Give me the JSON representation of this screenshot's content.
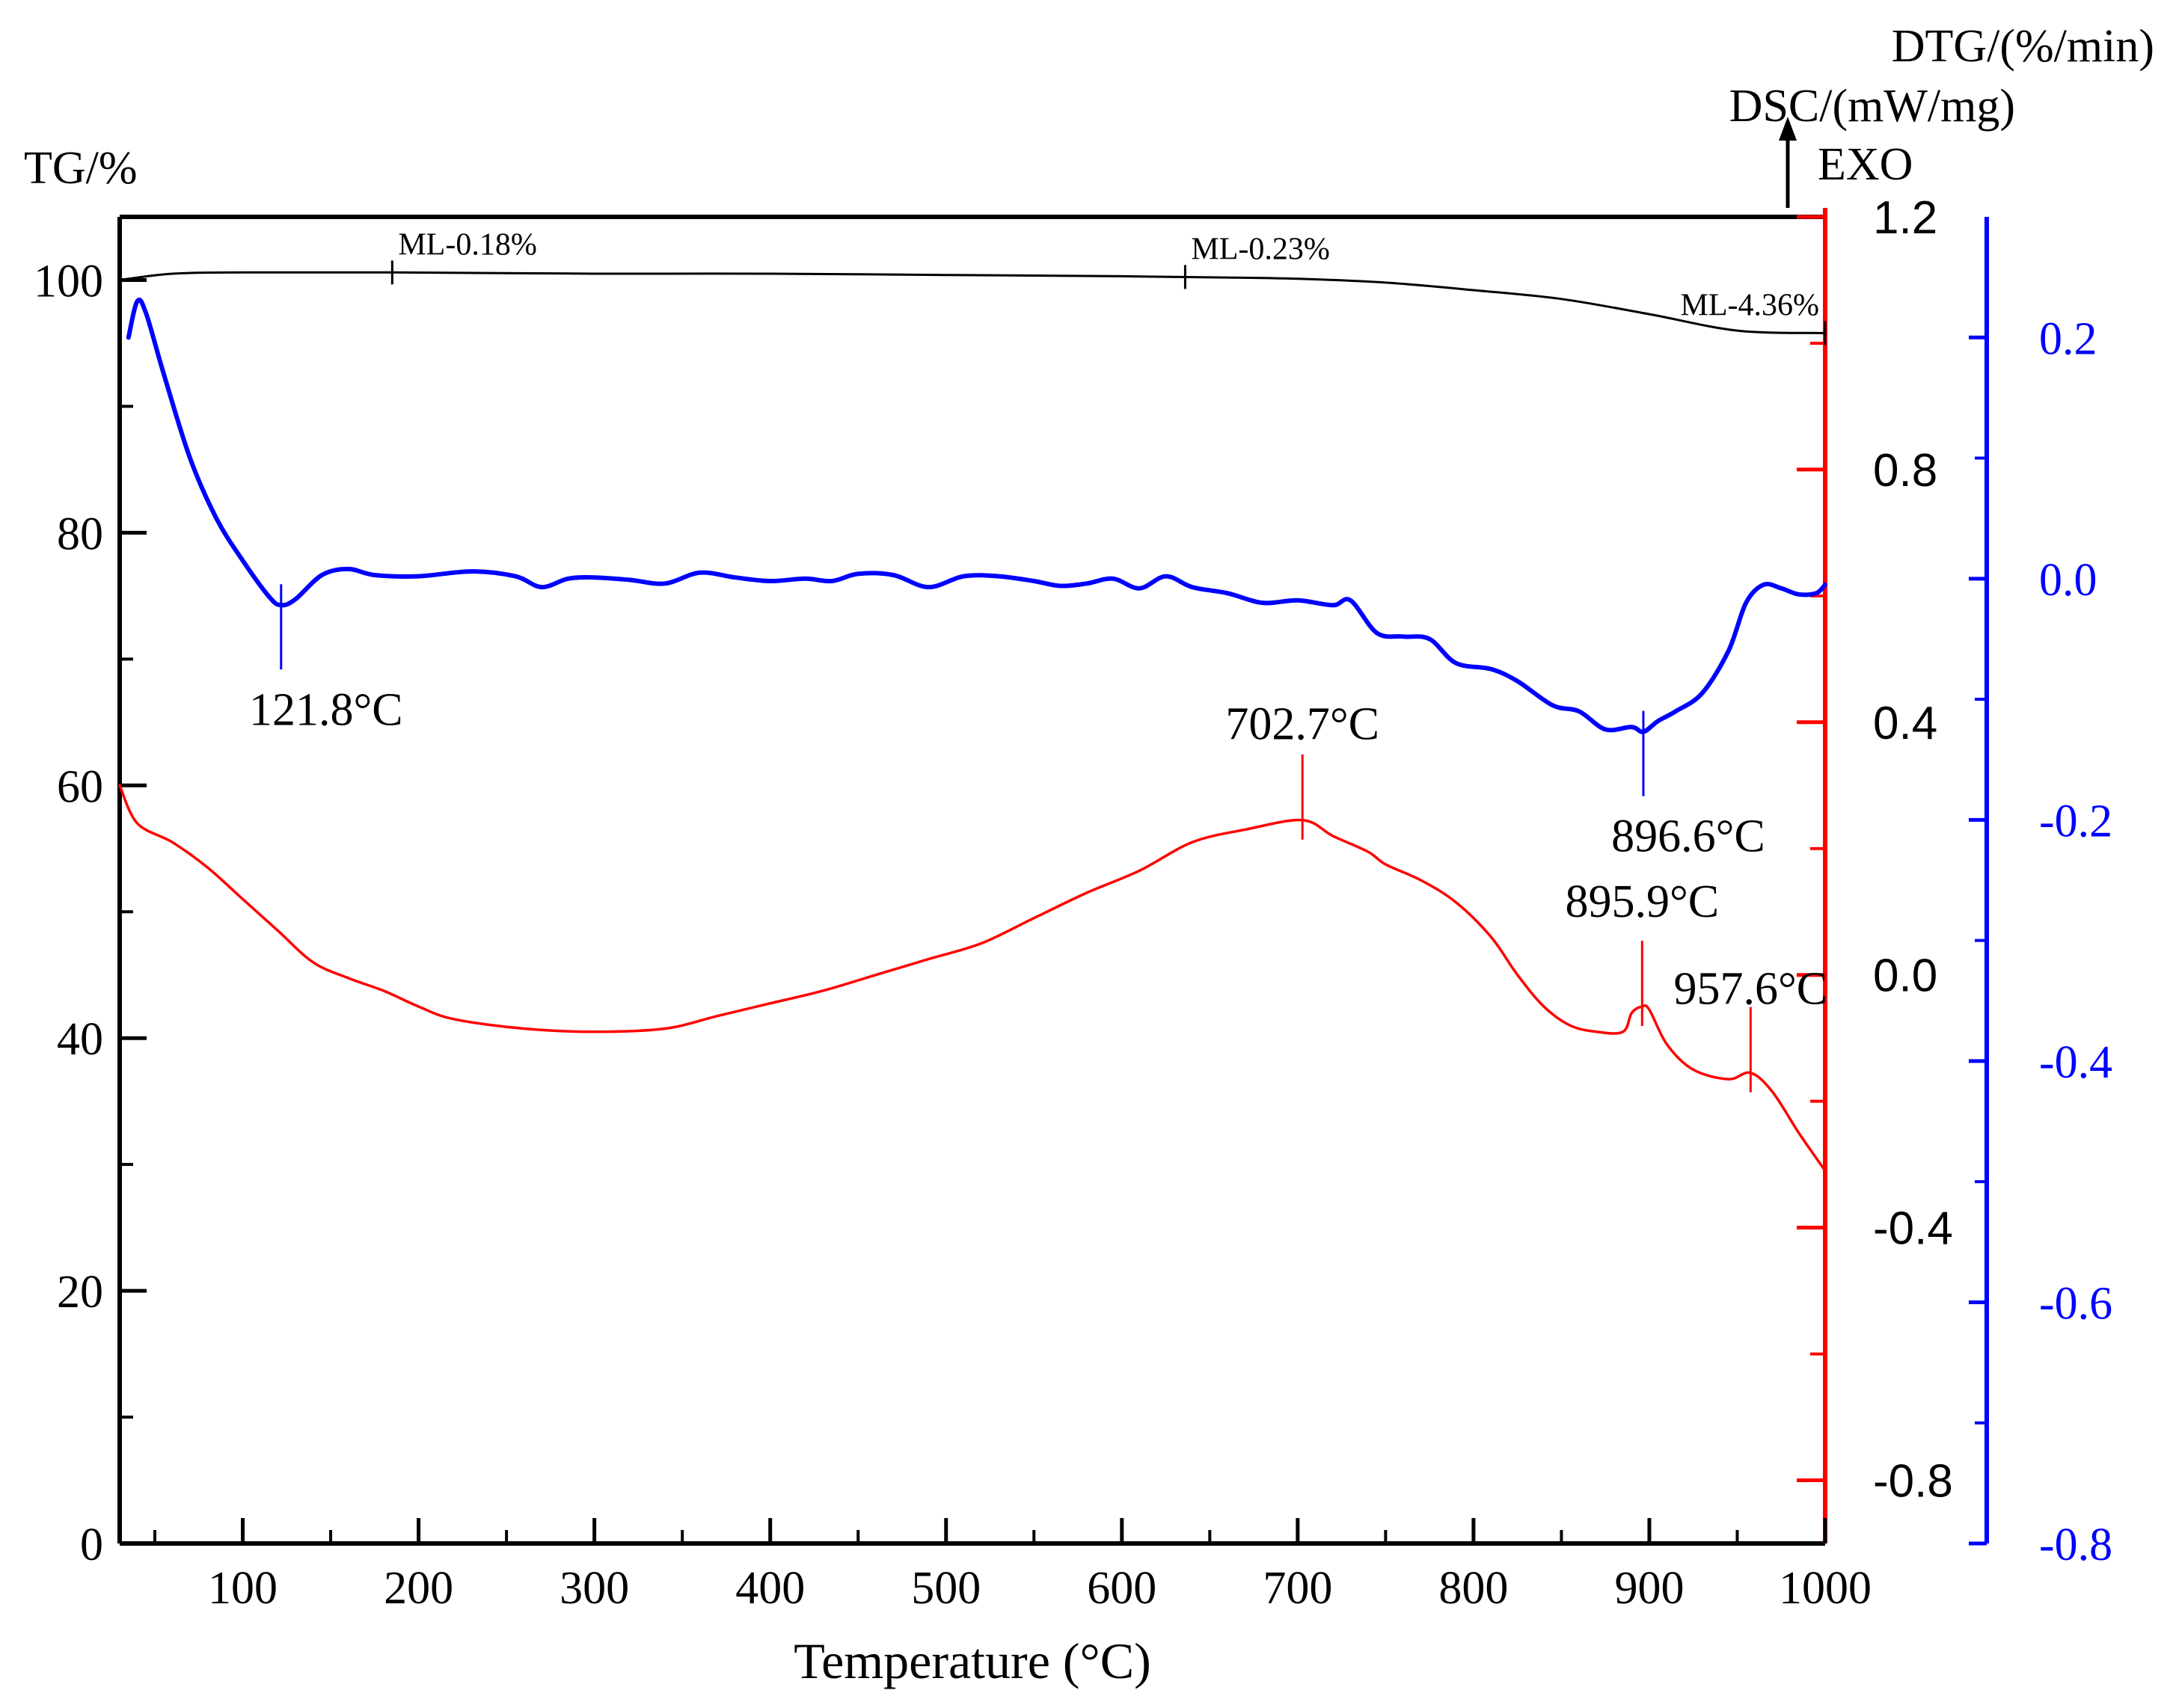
{
  "chart_data": {
    "type": "line",
    "x": {
      "label": "Temperature (°C)",
      "range": [
        30,
        1000
      ],
      "ticks": [
        100,
        200,
        300,
        400,
        500,
        600,
        700,
        800,
        900,
        1000
      ]
    },
    "axes": {
      "tg": {
        "title": "TG/%",
        "range": [
          0,
          105
        ],
        "ticks": [
          0,
          20,
          40,
          60,
          80,
          100
        ],
        "color": "#000000"
      },
      "dsc": {
        "title": "DSC/(mW/mg)",
        "exo_label": "EXO",
        "range": [
          -0.9,
          1.2
        ],
        "ticks": [
          -0.8,
          -0.4,
          0.0,
          0.4,
          0.8,
          1.2
        ],
        "tick_labels": [
          "-0.8",
          "-0.4",
          "0.0",
          "0.4",
          "0.8",
          "1.2"
        ],
        "color": "#ff0000"
      },
      "dtg": {
        "title": "DTG/(%/min)",
        "range": [
          -0.8,
          0.3
        ],
        "ticks": [
          -0.8,
          -0.6,
          -0.4,
          -0.2,
          0.0,
          0.2
        ],
        "tick_labels": [
          "-0.8",
          "-0.6",
          "-0.4",
          "-0.2",
          "0.0",
          "0.2"
        ],
        "color": "#0000ff"
      }
    },
    "series": [
      {
        "name": "TG",
        "axis": "tg",
        "color": "#000000",
        "points": [
          [
            30,
            100
          ],
          [
            60,
            100.5
          ],
          [
            100,
            100.6
          ],
          [
            185,
            100.6
          ],
          [
            300,
            100.5
          ],
          [
            400,
            100.5
          ],
          [
            500,
            100.4
          ],
          [
            600,
            100.3
          ],
          [
            660,
            100.2
          ],
          [
            700,
            100.1
          ],
          [
            750,
            99.8
          ],
          [
            800,
            99.2
          ],
          [
            850,
            98.5
          ],
          [
            900,
            97.3
          ],
          [
            950,
            96.0
          ],
          [
            1000,
            95.8
          ]
        ]
      },
      {
        "name": "DTG",
        "axis": "dtg",
        "color": "#0000ff",
        "points": [
          [
            35,
            0.2
          ],
          [
            40,
            0.23
          ],
          [
            45,
            0.22
          ],
          [
            55,
            0.17
          ],
          [
            70,
            0.1
          ],
          [
            85,
            0.05
          ],
          [
            100,
            0.015
          ],
          [
            115,
            -0.015
          ],
          [
            121.8,
            -0.022
          ],
          [
            130,
            -0.017
          ],
          [
            145,
            0.003
          ],
          [
            160,
            0.008
          ],
          [
            175,
            0.003
          ],
          [
            200,
            0.002
          ],
          [
            230,
            0.006
          ],
          [
            255,
            0.002
          ],
          [
            270,
            -0.007
          ],
          [
            285,
            0.0
          ],
          [
            300,
            0.001
          ],
          [
            320,
            -0.001
          ],
          [
            340,
            -0.004
          ],
          [
            360,
            0.005
          ],
          [
            380,
            0.001
          ],
          [
            400,
            -0.002
          ],
          [
            420,
            0.0
          ],
          [
            435,
            -0.002
          ],
          [
            450,
            0.004
          ],
          [
            470,
            0.003
          ],
          [
            490,
            -0.007
          ],
          [
            510,
            0.002
          ],
          [
            530,
            0.002
          ],
          [
            550,
            -0.002
          ],
          [
            565,
            -0.006
          ],
          [
            580,
            -0.004
          ],
          [
            595,
            0.0
          ],
          [
            610,
            -0.008
          ],
          [
            625,
            0.002
          ],
          [
            640,
            -0.007
          ],
          [
            660,
            -0.012
          ],
          [
            680,
            -0.02
          ],
          [
            700,
            -0.018
          ],
          [
            720,
            -0.022
          ],
          [
            730,
            -0.018
          ],
          [
            745,
            -0.045
          ],
          [
            760,
            -0.048
          ],
          [
            775,
            -0.05
          ],
          [
            790,
            -0.07
          ],
          [
            810,
            -0.075
          ],
          [
            825,
            -0.085
          ],
          [
            845,
            -0.105
          ],
          [
            860,
            -0.11
          ],
          [
            875,
            -0.125
          ],
          [
            890,
            -0.123
          ],
          [
            896.6,
            -0.127
          ],
          [
            905,
            -0.118
          ],
          [
            915,
            -0.11
          ],
          [
            930,
            -0.095
          ],
          [
            945,
            -0.06
          ],
          [
            955,
            -0.02
          ],
          [
            965,
            -0.005
          ],
          [
            975,
            -0.008
          ],
          [
            985,
            -0.013
          ],
          [
            995,
            -0.012
          ],
          [
            1000,
            -0.005
          ]
        ]
      },
      {
        "name": "DSC",
        "axis": "dsc",
        "color": "#ff0000",
        "points": [
          [
            30,
            0.3
          ],
          [
            40,
            0.24
          ],
          [
            60,
            0.21
          ],
          [
            80,
            0.17
          ],
          [
            100,
            0.12
          ],
          [
            120,
            0.07
          ],
          [
            140,
            0.02
          ],
          [
            160,
            -0.005
          ],
          [
            180,
            -0.025
          ],
          [
            200,
            -0.05
          ],
          [
            220,
            -0.07
          ],
          [
            260,
            -0.085
          ],
          [
            300,
            -0.09
          ],
          [
            340,
            -0.085
          ],
          [
            370,
            -0.065
          ],
          [
            400,
            -0.045
          ],
          [
            430,
            -0.025
          ],
          [
            460,
            0.0
          ],
          [
            490,
            0.025
          ],
          [
            520,
            0.05
          ],
          [
            550,
            0.09
          ],
          [
            580,
            0.13
          ],
          [
            610,
            0.165
          ],
          [
            640,
            0.21
          ],
          [
            670,
            0.23
          ],
          [
            702.7,
            0.245
          ],
          [
            720,
            0.22
          ],
          [
            740,
            0.195
          ],
          [
            750,
            0.175
          ],
          [
            770,
            0.15
          ],
          [
            790,
            0.115
          ],
          [
            810,
            0.06
          ],
          [
            825,
            0.0
          ],
          [
            840,
            -0.05
          ],
          [
            855,
            -0.08
          ],
          [
            870,
            -0.09
          ],
          [
            885,
            -0.09
          ],
          [
            890,
            -0.06
          ],
          [
            895.9,
            -0.05
          ],
          [
            900,
            -0.055
          ],
          [
            910,
            -0.11
          ],
          [
            925,
            -0.15
          ],
          [
            945,
            -0.165
          ],
          [
            957.6,
            -0.155
          ],
          [
            970,
            -0.185
          ],
          [
            985,
            -0.25
          ],
          [
            1000,
            -0.31
          ]
        ]
      }
    ],
    "annotations": {
      "tg_mass_loss": [
        {
          "x": 185,
          "label": "ML-0.18%"
        },
        {
          "x": 636,
          "label": "ML-0.23%"
        },
        {
          "x": 1000,
          "label": "ML-4.36%"
        }
      ],
      "dtg_peaks": [
        {
          "x": 121.8,
          "value": -0.022,
          "label": "121.8°C"
        },
        {
          "x": 896.6,
          "value": -0.127,
          "label": "896.6°C"
        }
      ],
      "dsc_peaks": [
        {
          "x": 702.7,
          "value": 0.245,
          "label": "702.7°C"
        },
        {
          "x": 895.9,
          "value": -0.05,
          "label": "895.9°C"
        },
        {
          "x": 957.6,
          "value": -0.155,
          "label": "957.6°C"
        }
      ]
    }
  }
}
